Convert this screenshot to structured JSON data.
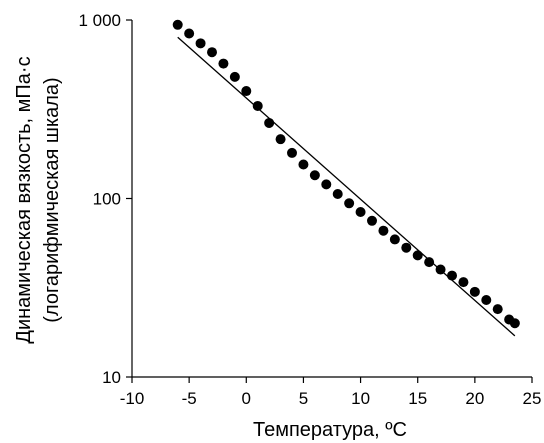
{
  "colors": {
    "marker": "#000000",
    "axis": "#000000",
    "line": "#000000",
    "background": "#ffffff"
  },
  "chart_data": {
    "type": "scatter",
    "title": "",
    "xlabel": "Температура, ºC",
    "ylabel_line1": "Динамическая вязкость, мПа·с",
    "ylabel_line2": "(логарифмическая шкала)",
    "xlim": [
      -10,
      25
    ],
    "ylim": [
      10,
      1000
    ],
    "yscale": "log",
    "grid": false,
    "legend": "none",
    "x_ticks": [
      -10,
      -5,
      0,
      5,
      10,
      15,
      20,
      25
    ],
    "x_tick_labels": [
      "-10",
      "-5",
      "0",
      "5",
      "10",
      "15",
      "20",
      "25"
    ],
    "y_ticks": [
      10,
      100,
      1000
    ],
    "y_tick_labels": [
      "10",
      "100",
      "1 000"
    ],
    "series": [
      {
        "type": "scatter",
        "x": [
          -6,
          -5,
          -4,
          -3,
          -2,
          -1,
          0,
          1,
          2,
          3,
          4,
          5,
          6,
          7,
          8,
          9,
          10,
          11,
          12,
          13,
          14,
          15,
          16,
          17,
          18,
          19,
          20,
          21,
          22,
          23,
          23.5
        ],
        "y": [
          940,
          840,
          740,
          660,
          570,
          480,
          400,
          330,
          265,
          215,
          180,
          155,
          135,
          120,
          106,
          94,
          84,
          75,
          66,
          59,
          53,
          48,
          44,
          40,
          37,
          34,
          30,
          27,
          24,
          21,
          20
        ]
      },
      {
        "type": "line",
        "x": [
          -6,
          23.5
        ],
        "y": [
          800,
          17
        ]
      }
    ]
  }
}
